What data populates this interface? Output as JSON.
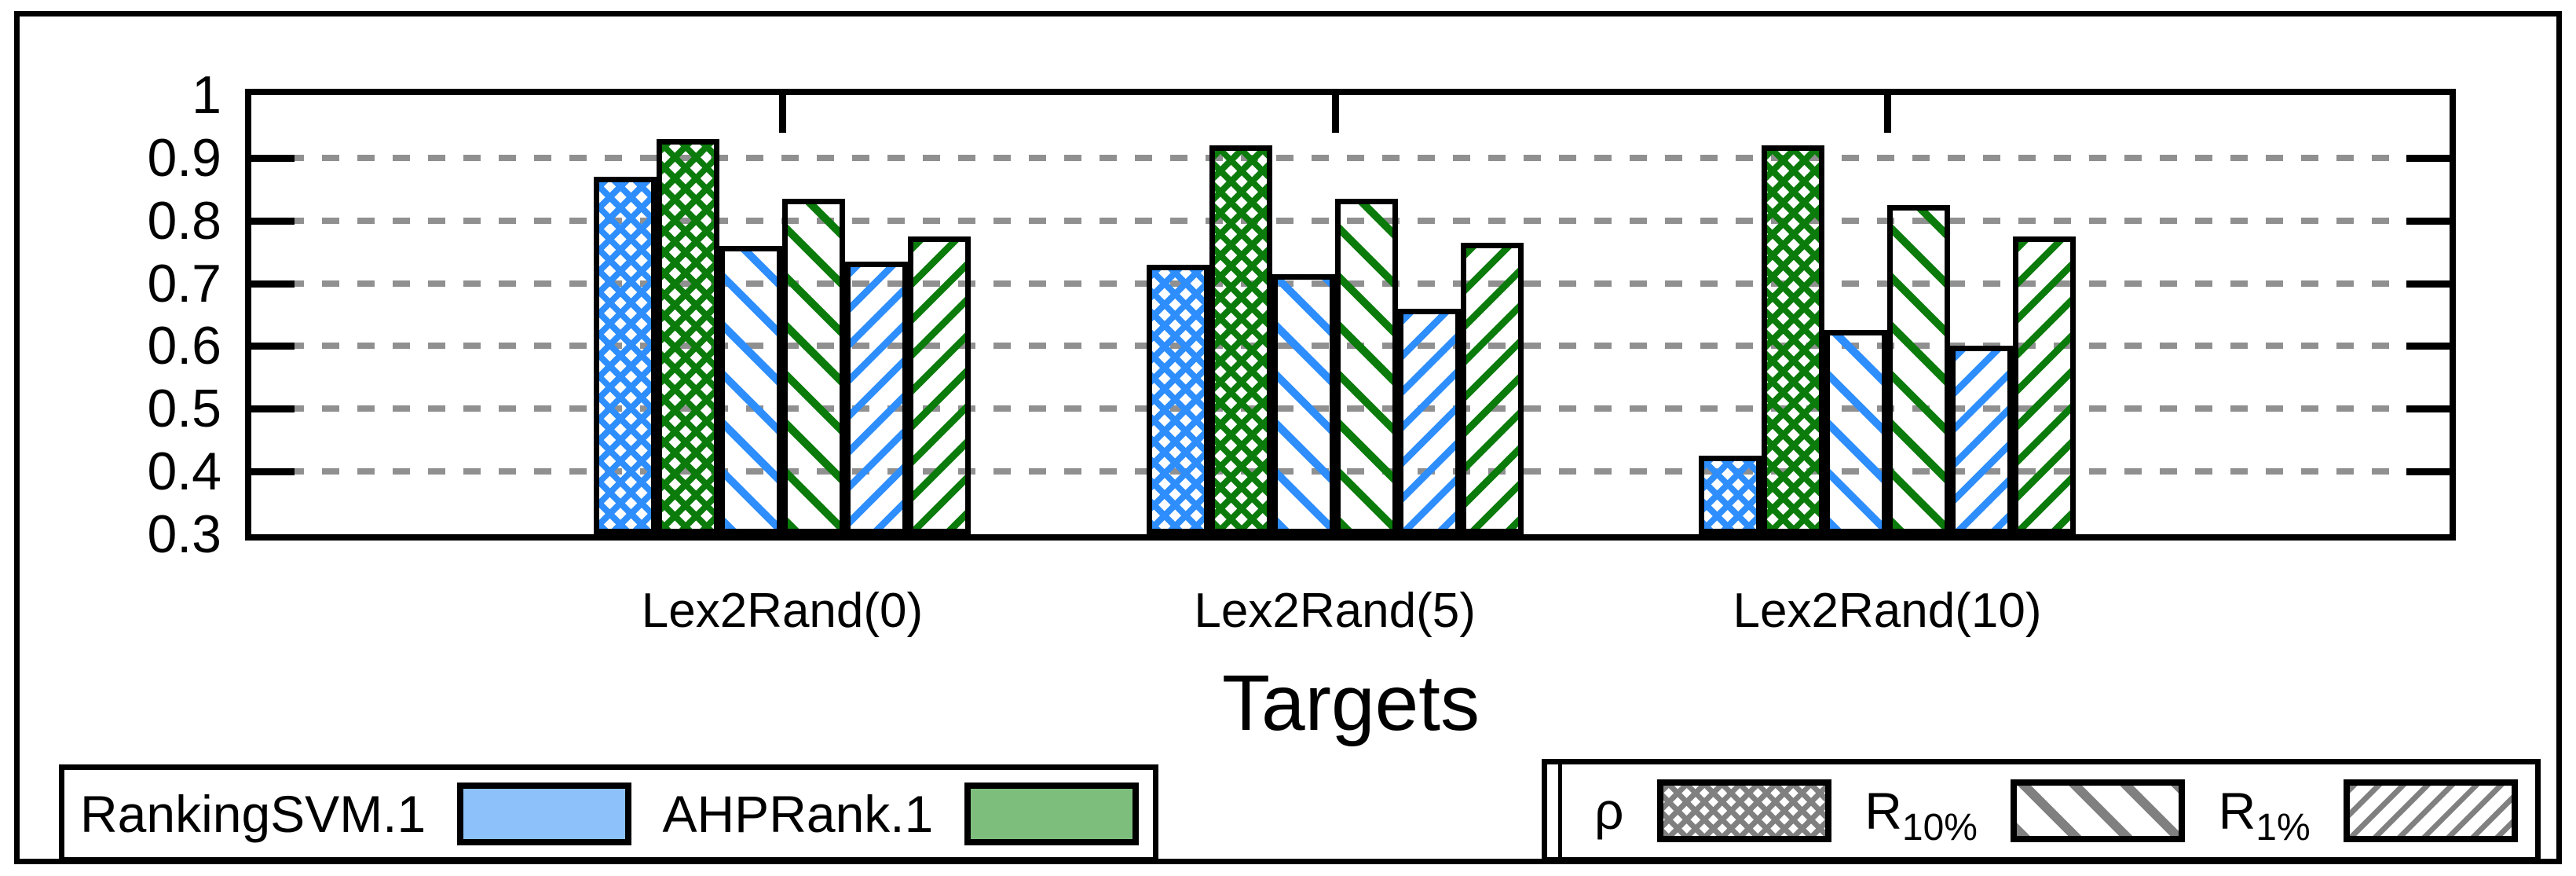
{
  "colors": {
    "ranking_svm": "#2E8EFD",
    "ahp_rank": "#0B7B0B",
    "legend_ranking_svm": "#8CC1FA",
    "legend_ahp_rank": "#7DBE7D",
    "pattern_gray": "#808080",
    "gridline": "#909090",
    "axis": "#000000"
  },
  "chart_data": {
    "type": "bar",
    "title": "",
    "xlabel": "Targets",
    "ylabel": "",
    "categories": [
      "Lex2Rand(0)",
      "Lex2Rand(5)",
      "Lex2Rand(10)"
    ],
    "series": [
      {
        "name": "RankingSVM.1",
        "metric": "rho",
        "pattern": "crosshatch",
        "color_key": "ranking_svm",
        "values": [
          0.87,
          0.73,
          0.425
        ]
      },
      {
        "name": "AHPRank.1",
        "metric": "rho",
        "pattern": "crosshatch",
        "color_key": "ahp_rank",
        "values": [
          0.93,
          0.92,
          0.92
        ]
      },
      {
        "name": "RankingSVM.1",
        "metric": "R10%",
        "pattern": "backslash",
        "color_key": "ranking_svm",
        "values": [
          0.76,
          0.715,
          0.625
        ]
      },
      {
        "name": "AHPRank.1",
        "metric": "R10%",
        "pattern": "backslash",
        "color_key": "ahp_rank",
        "values": [
          0.835,
          0.835,
          0.825
        ]
      },
      {
        "name": "RankingSVM.1",
        "metric": "R1%",
        "pattern": "forward-slash",
        "color_key": "ranking_svm",
        "values": [
          0.735,
          0.66,
          0.6
        ]
      },
      {
        "name": "AHPRank.1",
        "metric": "R1%",
        "pattern": "forward-slash",
        "color_key": "ahp_rank",
        "values": [
          0.775,
          0.765,
          0.775
        ]
      }
    ],
    "ylim": [
      0.3,
      1.0
    ],
    "yticks": [
      1,
      0.9,
      0.8,
      0.7,
      0.6,
      0.5,
      0.4,
      0.3
    ],
    "ytick_labels": [
      "1",
      "0.9",
      "0.8",
      "0.7",
      "0.6",
      "0.5",
      "0.4",
      "0.3"
    ],
    "grid": "dashed horizontal at 0.4-0.9",
    "legend_position": "bottom, two framed boxes"
  },
  "legends": {
    "models": {
      "items": [
        {
          "label": "RankingSVM.1",
          "swatch": "solid-light-blue"
        },
        {
          "label": "AHPRank.1",
          "swatch": "solid-light-green"
        }
      ]
    },
    "metrics": {
      "items": [
        {
          "label": "ρ",
          "base": "ρ",
          "sub": "",
          "swatch": "gray-crosshatch"
        },
        {
          "label": "R10%",
          "base": "R",
          "sub": "10%",
          "swatch": "gray-backslash"
        },
        {
          "label": "R1%",
          "base": "R",
          "sub": "1%",
          "swatch": "gray-forward-slash"
        }
      ]
    }
  }
}
